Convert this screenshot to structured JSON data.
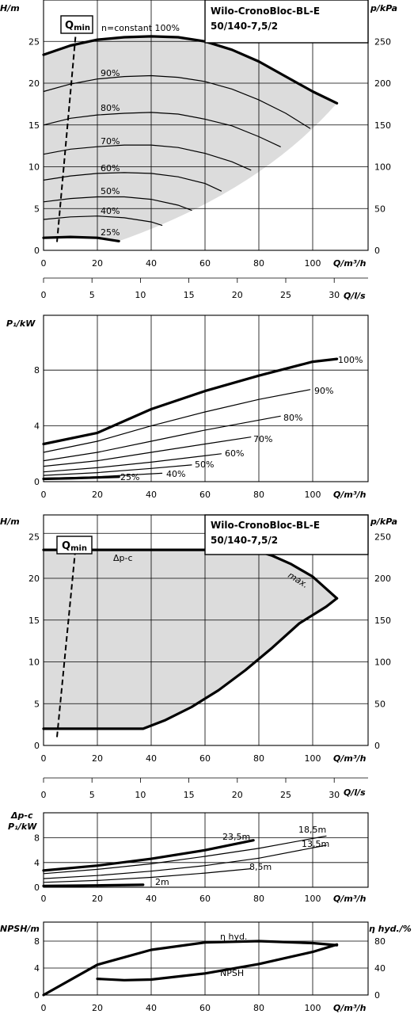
{
  "panel1": {
    "title_line1": "Wilo-CronoBloc-BL-E",
    "title_line2": "50/140-7,5/2",
    "ylabel": "H/m",
    "ylabel2": "p/kPa",
    "xlabel": "Q/m³/h",
    "qmin_label": "Q",
    "qmin_sub": "min",
    "xticks": [
      "0",
      "20",
      "40",
      "60",
      "80",
      "100"
    ],
    "yticks": [
      "0",
      "5",
      "10",
      "15",
      "20",
      "25"
    ],
    "y2ticks": [
      "0",
      "50",
      "100",
      "150",
      "200",
      "250"
    ]
  },
  "axis_ls_1": {
    "label": "Q/l/s",
    "ticks": [
      "0",
      "5",
      "10",
      "15",
      "20",
      "25",
      "30"
    ]
  },
  "panel2": {
    "ylabel": "P₁/kW",
    "xlabel": "Q/m³/h",
    "xticks": [
      "0",
      "20",
      "40",
      "60",
      "80",
      "100"
    ],
    "yticks": [
      "0",
      "4",
      "8"
    ]
  },
  "panel3": {
    "title_line1": "Wilo-CronoBloc-BL-E",
    "title_line2": "50/140-7,5/2",
    "ylabel": "H/m",
    "ylabel2": "p/kPa",
    "xlabel": "Q/m³/h",
    "qmin_label": "Q",
    "qmin_sub": "min",
    "dp_label": "Δp-c",
    "max_label": "max.",
    "xticks": [
      "0",
      "20",
      "40",
      "60",
      "80",
      "100"
    ],
    "yticks": [
      "0",
      "5",
      "10",
      "15",
      "20",
      "25"
    ],
    "y2ticks": [
      "0",
      "50",
      "100",
      "150",
      "200",
      "250"
    ]
  },
  "axis_ls_2": {
    "label": "Q/l/s",
    "ticks": [
      "0",
      "5",
      "10",
      "15",
      "20",
      "25",
      "30"
    ]
  },
  "panel4": {
    "ylabel_line1": "Δp-c",
    "ylabel_line2": "P₁/kW",
    "xlabel": "Q/m³/h",
    "xticks": [
      "0",
      "20",
      "40",
      "60",
      "80",
      "100"
    ],
    "yticks": [
      "0",
      "4",
      "8"
    ]
  },
  "panel5": {
    "ylabel": "NPSH/m",
    "ylabel2": "η hyd./%",
    "xlabel": "Q/m³/h",
    "eta_label": "η hyd.",
    "npsh_label": "NPSH",
    "xticks": [
      "0",
      "20",
      "40",
      "60",
      "80",
      "100"
    ],
    "yticks": [
      "0",
      "4",
      "8"
    ],
    "y2ticks": [
      "0",
      "40",
      "80"
    ]
  },
  "chart_data": [
    {
      "type": "line",
      "name": "H(Q) speed curves",
      "xlabel": "Q/m³/h",
      "ylabel": "H/m",
      "y2label": "p/kPa",
      "xlim": [
        0,
        120
      ],
      "ylim": [
        0,
        28
      ],
      "series": [
        {
          "name": "n=constant 100%",
          "x": [
            0,
            10,
            20,
            30,
            40,
            50,
            60,
            70,
            80,
            90,
            100,
            109
          ],
          "y": [
            23.4,
            24.5,
            25.2,
            25.5,
            25.6,
            25.5,
            25.0,
            24.0,
            22.6,
            20.8,
            19.0,
            17.6
          ]
        },
        {
          "name": "90%",
          "x": [
            0,
            10,
            20,
            30,
            40,
            50,
            60,
            70,
            80,
            90,
            99
          ],
          "y": [
            19.0,
            19.9,
            20.5,
            20.8,
            20.9,
            20.7,
            20.2,
            19.3,
            18.0,
            16.4,
            14.6
          ]
        },
        {
          "name": "80%",
          "x": [
            0,
            10,
            20,
            30,
            40,
            50,
            60,
            70,
            80,
            88
          ],
          "y": [
            15.0,
            15.8,
            16.2,
            16.4,
            16.5,
            16.3,
            15.7,
            14.9,
            13.6,
            12.4
          ]
        },
        {
          "name": "70%",
          "x": [
            0,
            10,
            20,
            30,
            40,
            50,
            60,
            70,
            77
          ],
          "y": [
            11.5,
            12.1,
            12.4,
            12.6,
            12.6,
            12.3,
            11.6,
            10.6,
            9.6
          ]
        },
        {
          "name": "60%",
          "x": [
            0,
            10,
            20,
            30,
            40,
            50,
            60,
            66
          ],
          "y": [
            8.4,
            8.9,
            9.2,
            9.3,
            9.2,
            8.8,
            8.0,
            7.1
          ]
        },
        {
          "name": "50%",
          "x": [
            0,
            10,
            20,
            30,
            40,
            50,
            55
          ],
          "y": [
            5.8,
            6.2,
            6.4,
            6.4,
            6.1,
            5.4,
            4.8
          ]
        },
        {
          "name": "40%",
          "x": [
            0,
            10,
            20,
            30,
            40,
            44
          ],
          "y": [
            3.7,
            4.0,
            4.1,
            3.9,
            3.4,
            3.0
          ]
        },
        {
          "name": "25%",
          "x": [
            0,
            10,
            20,
            28
          ],
          "y": [
            1.5,
            1.6,
            1.5,
            1.1
          ]
        }
      ],
      "qmin_line": {
        "x": [
          5,
          12
        ],
        "y": [
          1,
          26
        ]
      }
    },
    {
      "type": "line",
      "name": "P1(Q) speed curves",
      "xlabel": "Q/m³/h",
      "ylabel": "P₁/kW",
      "xlim": [
        0,
        120
      ],
      "ylim": [
        0,
        10
      ],
      "series": [
        {
          "name": "100%",
          "x": [
            0,
            20,
            40,
            60,
            80,
            100,
            109
          ],
          "y": [
            2.7,
            3.5,
            5.2,
            6.5,
            7.6,
            8.6,
            8.8
          ]
        },
        {
          "name": "90%",
          "x": [
            0,
            20,
            40,
            60,
            80,
            99
          ],
          "y": [
            2.1,
            2.9,
            4.0,
            5.0,
            5.9,
            6.6
          ]
        },
        {
          "name": "80%",
          "x": [
            0,
            20,
            40,
            60,
            88
          ],
          "y": [
            1.5,
            2.1,
            2.9,
            3.7,
            4.7
          ]
        },
        {
          "name": "70%",
          "x": [
            0,
            20,
            40,
            60,
            77
          ],
          "y": [
            1.1,
            1.5,
            2.1,
            2.7,
            3.2
          ]
        },
        {
          "name": "60%",
          "x": [
            0,
            20,
            40,
            66
          ],
          "y": [
            0.7,
            1.0,
            1.4,
            2.0
          ]
        },
        {
          "name": "50%",
          "x": [
            0,
            20,
            40,
            55
          ],
          "y": [
            0.45,
            0.65,
            0.95,
            1.2
          ]
        },
        {
          "name": "40%",
          "x": [
            0,
            20,
            44
          ],
          "y": [
            0.25,
            0.35,
            0.6
          ]
        },
        {
          "name": "25%",
          "x": [
            0,
            10,
            20,
            28
          ],
          "y": [
            0.2,
            0.24,
            0.3,
            0.35
          ]
        }
      ]
    },
    {
      "type": "area",
      "name": "H(Q) Δp-c range",
      "xlabel": "Q/m³/h",
      "ylabel": "H/m",
      "y2label": "p/kPa",
      "xlim": [
        0,
        120
      ],
      "ylim": [
        0,
        28
      ],
      "series": [
        {
          "name": "Δp-c",
          "x": [
            0,
            10,
            20,
            30,
            40,
            50,
            60,
            70,
            78
          ],
          "y": [
            23.4,
            23.4,
            23.4,
            23.4,
            23.4,
            23.4,
            23.4,
            23.4,
            23.4
          ]
        },
        {
          "name": "max.",
          "x": [
            78,
            85,
            92,
            100,
            109
          ],
          "y": [
            23.4,
            22.7,
            21.7,
            20.2,
            17.6
          ]
        },
        {
          "name": "lower bound",
          "x": [
            0,
            37,
            45,
            55,
            65,
            75,
            85,
            95,
            105,
            109
          ],
          "y": [
            2,
            2,
            3,
            4.6,
            6.6,
            9.0,
            11.7,
            14.6,
            16.6,
            17.6
          ]
        }
      ],
      "qmin_line": {
        "x": [
          5,
          12
        ],
        "y": [
          1,
          24
        ]
      }
    },
    {
      "type": "line",
      "name": "Δp-c P1(Q)",
      "xlabel": "Q/m³/h",
      "ylabel": "P₁/kW",
      "xlim": [
        0,
        120
      ],
      "ylim": [
        0,
        10
      ],
      "series": [
        {
          "name": "23,5m",
          "x": [
            0,
            20,
            40,
            60,
            78
          ],
          "y": [
            2.7,
            3.5,
            4.6,
            6.0,
            7.6
          ]
        },
        {
          "name": "18,5m",
          "x": [
            0,
            20,
            40,
            60,
            80,
            105
          ],
          "y": [
            2.2,
            2.9,
            3.8,
            5.0,
            6.3,
            8.3
          ]
        },
        {
          "name": "13,5m",
          "x": [
            0,
            20,
            40,
            60,
            80,
            105
          ],
          "y": [
            1.4,
            1.9,
            2.6,
            3.5,
            4.7,
            6.8
          ]
        },
        {
          "name": "8,5m",
          "x": [
            0,
            20,
            40,
            60,
            77
          ],
          "y": [
            0.8,
            1.1,
            1.6,
            2.3,
            3.0
          ]
        },
        {
          "name": "2m",
          "x": [
            0,
            20,
            37
          ],
          "y": [
            0.2,
            0.3,
            0.4
          ]
        }
      ]
    },
    {
      "type": "line",
      "name": "NPSH / efficiency",
      "xlabel": "Q/m³/h",
      "ylabel": "NPSH/m",
      "y2label": "η hyd./%",
      "xlim": [
        0,
        120
      ],
      "ylim": [
        0,
        10
      ],
      "y2lim": [
        0,
        100
      ],
      "series": [
        {
          "name": "η hyd.",
          "axis": "y2",
          "x": [
            0,
            20,
            40,
            60,
            80,
            100,
            109
          ],
          "y": [
            0,
            45,
            67,
            78,
            80,
            77,
            74
          ]
        },
        {
          "name": "NPSH",
          "axis": "y",
          "x": [
            20,
            30,
            40,
            60,
            80,
            100,
            109
          ],
          "y": [
            2.4,
            2.2,
            2.3,
            3.2,
            4.6,
            6.4,
            7.5
          ]
        }
      ]
    }
  ]
}
